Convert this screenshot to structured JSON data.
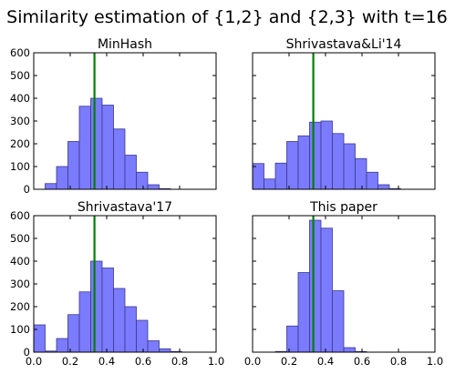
{
  "figure": {
    "title": "Similarity estimation of {1,2} and {2,3} with t=16"
  },
  "style": {
    "bar_fill": "#7b7bff",
    "bar_stroke": "#3a3a8a",
    "vline_color": "#008000"
  },
  "chart_data": [
    {
      "type": "bar",
      "title": "MinHash",
      "xlim": [
        0,
        1.0
      ],
      "ylim": [
        0,
        600
      ],
      "xticks": [
        "0.0",
        "0.2",
        "0.4",
        "0.6",
        "0.8",
        "1.0"
      ],
      "yticks": [
        "0",
        "100",
        "200",
        "300",
        "400",
        "500",
        "600"
      ],
      "show_xtick_labels": false,
      "show_ytick_labels": true,
      "bin_width": 0.0625,
      "bin_starts": [
        0.0625,
        0.125,
        0.1875,
        0.25,
        0.3125,
        0.375,
        0.4375,
        0.5,
        0.5625,
        0.625,
        0.6875
      ],
      "values": [
        25,
        100,
        210,
        365,
        400,
        370,
        265,
        150,
        75,
        20,
        3
      ],
      "vline": 0.333
    },
    {
      "type": "bar",
      "title": "Shrivastava&Li'14",
      "xlim": [
        0,
        1.0
      ],
      "ylim": [
        0,
        600
      ],
      "xticks": [
        "0.0",
        "0.2",
        "0.4",
        "0.6",
        "0.8",
        "1.0"
      ],
      "yticks": [
        "0",
        "100",
        "200",
        "300",
        "400",
        "500",
        "600"
      ],
      "show_xtick_labels": false,
      "show_ytick_labels": false,
      "bin_width": 0.0625,
      "bin_starts": [
        0.0,
        0.0625,
        0.125,
        0.1875,
        0.25,
        0.3125,
        0.375,
        0.4375,
        0.5,
        0.5625,
        0.625,
        0.6875,
        0.75
      ],
      "values": [
        113,
        45,
        115,
        210,
        235,
        295,
        300,
        245,
        200,
        135,
        75,
        20,
        3
      ],
      "vline": 0.333
    },
    {
      "type": "bar",
      "title": "Shrivastava'17",
      "xlim": [
        0,
        1.0
      ],
      "ylim": [
        0,
        600
      ],
      "xticks": [
        "0.0",
        "0.2",
        "0.4",
        "0.6",
        "0.8",
        "1.0"
      ],
      "yticks": [
        "0",
        "100",
        "200",
        "300",
        "400",
        "500",
        "600"
      ],
      "show_xtick_labels": true,
      "show_ytick_labels": true,
      "bin_width": 0.0625,
      "bin_starts": [
        0.0,
        0.0625,
        0.125,
        0.1875,
        0.25,
        0.3125,
        0.375,
        0.4375,
        0.5,
        0.5625,
        0.625,
        0.6875,
        0.75
      ],
      "values": [
        120,
        5,
        60,
        165,
        265,
        400,
        370,
        280,
        200,
        140,
        50,
        15,
        3
      ],
      "vline": 0.333
    },
    {
      "type": "bar",
      "title": "This paper",
      "xlim": [
        0,
        1.0
      ],
      "ylim": [
        0,
        600
      ],
      "xticks": [
        "0.0",
        "0.2",
        "0.4",
        "0.6",
        "0.8",
        "1.0"
      ],
      "yticks": [
        "0",
        "100",
        "200",
        "300",
        "400",
        "500",
        "600"
      ],
      "show_xtick_labels": true,
      "show_ytick_labels": false,
      "bin_width": 0.0625,
      "bin_starts": [
        0.125,
        0.1875,
        0.25,
        0.3125,
        0.375,
        0.4375,
        0.5,
        0.5625
      ],
      "values": [
        3,
        115,
        350,
        580,
        545,
        270,
        20,
        3
      ],
      "vline": 0.333
    }
  ]
}
